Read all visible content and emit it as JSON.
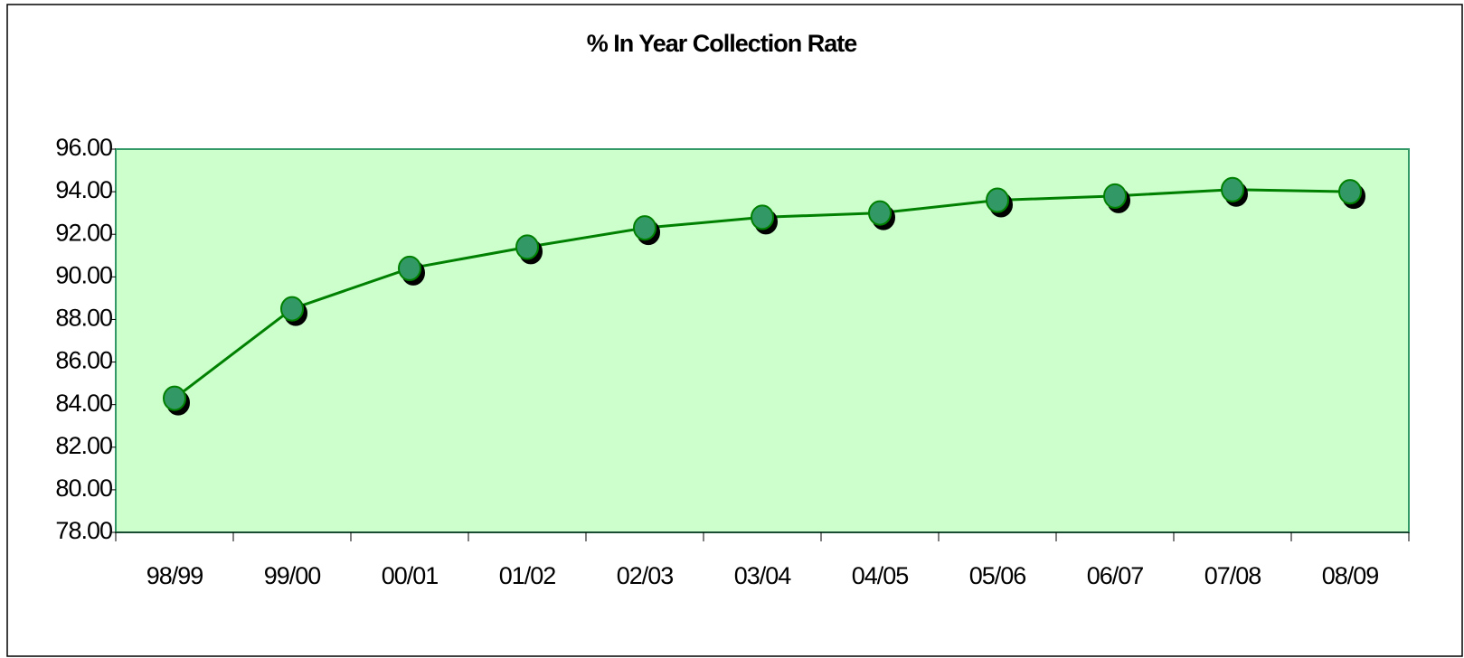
{
  "chart_data": {
    "type": "line",
    "title": "% In Year Collection Rate",
    "categories": [
      "98/99",
      "99/00",
      "00/01",
      "01/02",
      "02/03",
      "03/04",
      "04/05",
      "05/06",
      "06/07",
      "07/08",
      "08/09"
    ],
    "values": [
      84.3,
      88.5,
      90.4,
      91.4,
      92.3,
      92.8,
      93.0,
      93.6,
      93.8,
      94.1,
      94.0
    ],
    "color": "#008000",
    "marker_color": "#339966",
    "plot_background": "#ccffcc",
    "ylim": [
      78,
      96
    ],
    "yticks": [
      {
        "value": 78,
        "label": "78.00"
      },
      {
        "value": 80,
        "label": "80.00"
      },
      {
        "value": 82,
        "label": "82.00"
      },
      {
        "value": 84,
        "label": "84.00"
      },
      {
        "value": 86,
        "label": "86.00"
      },
      {
        "value": 88,
        "label": "88.00"
      },
      {
        "value": 90,
        "label": "90.00"
      },
      {
        "value": 92,
        "label": "92.00"
      },
      {
        "value": 94,
        "label": "94.00"
      },
      {
        "value": 96,
        "label": "96.00"
      }
    ],
    "grid": false
  }
}
